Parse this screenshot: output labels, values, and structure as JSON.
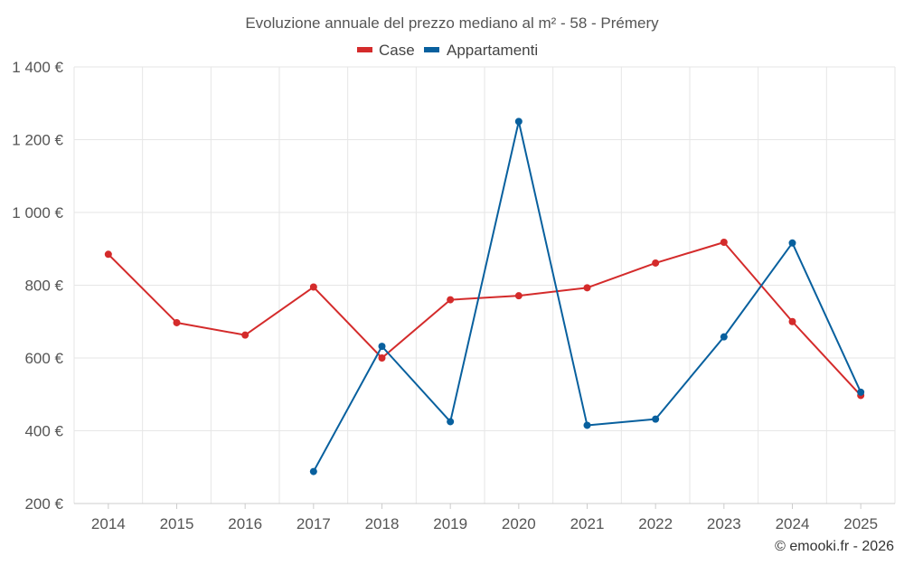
{
  "chart_data": {
    "type": "line",
    "title": "Evoluzione annuale del prezzo mediano al m² - 58 - Prémery",
    "categories": [
      "2014",
      "2015",
      "2016",
      "2017",
      "2018",
      "2019",
      "2020",
      "2021",
      "2022",
      "2023",
      "2024",
      "2025"
    ],
    "y_ticks": [
      "200 €",
      "400 €",
      "600 €",
      "800 €",
      "1 000 €",
      "1 200 €",
      "1 400 €"
    ],
    "y_tick_values": [
      200,
      400,
      600,
      800,
      1000,
      1200,
      1400
    ],
    "ylim": [
      200,
      1400
    ],
    "grid": true,
    "legend_position": "top-center",
    "series": [
      {
        "name": "Case",
        "color": "#d42b2b",
        "values": [
          885,
          697,
          663,
          795,
          600,
          760,
          771,
          793,
          861,
          918,
          700,
          497
        ]
      },
      {
        "name": "Appartamenti",
        "color": "#08609e",
        "values": [
          null,
          null,
          null,
          288,
          632,
          425,
          1250,
          415,
          432,
          658,
          916,
          506
        ]
      }
    ]
  },
  "credit": "© emooki.fr - 2026"
}
